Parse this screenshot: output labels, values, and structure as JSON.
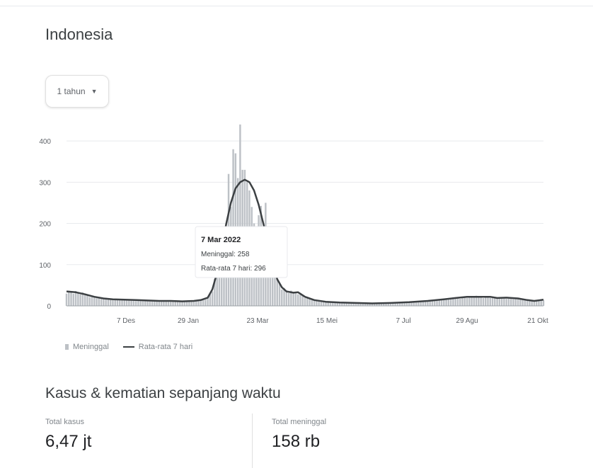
{
  "region": {
    "title": "Indonesia"
  },
  "range_select": {
    "value": "1 tahun",
    "icon": "dropdown-caret"
  },
  "chart_data": {
    "type": "bar",
    "series": [
      {
        "name": "Meninggal",
        "kind": "bar",
        "color": "#bdc1c6"
      },
      {
        "name": "Rata-rata 7 hari",
        "kind": "line",
        "color": "#3c4043"
      }
    ],
    "x_tick_labels": [
      "7 Des",
      "29 Jan",
      "23 Mar",
      "15 Mei",
      "7 Jul",
      "29 Agu",
      "21 Okt"
    ],
    "y_ticks": [
      0,
      100,
      200,
      300,
      400
    ],
    "ylim": [
      0,
      450
    ],
    "line_points": [
      [
        0,
        35
      ],
      [
        4,
        33
      ],
      [
        8,
        28
      ],
      [
        12,
        22
      ],
      [
        16,
        18
      ],
      [
        20,
        16
      ],
      [
        25,
        15
      ],
      [
        30,
        14
      ],
      [
        35,
        13
      ],
      [
        40,
        12
      ],
      [
        45,
        12
      ],
      [
        50,
        11
      ],
      [
        55,
        12
      ],
      [
        58,
        14
      ],
      [
        61,
        20
      ],
      [
        63,
        40
      ],
      [
        65,
        80
      ],
      [
        67,
        140
      ],
      [
        69,
        200
      ],
      [
        71,
        250
      ],
      [
        73,
        285
      ],
      [
        75,
        300
      ],
      [
        77,
        306
      ],
      [
        79,
        300
      ],
      [
        81,
        280
      ],
      [
        83,
        245
      ],
      [
        85,
        200
      ],
      [
        87,
        150
      ],
      [
        89,
        100
      ],
      [
        91,
        65
      ],
      [
        93,
        45
      ],
      [
        95,
        35
      ],
      [
        98,
        32
      ],
      [
        100,
        33
      ],
      [
        103,
        22
      ],
      [
        107,
        14
      ],
      [
        112,
        10
      ],
      [
        118,
        8
      ],
      [
        125,
        7
      ],
      [
        132,
        6
      ],
      [
        140,
        7
      ],
      [
        148,
        9
      ],
      [
        156,
        12
      ],
      [
        163,
        16
      ],
      [
        168,
        19
      ],
      [
        173,
        22
      ],
      [
        178,
        22
      ],
      [
        183,
        22
      ],
      [
        186,
        19
      ],
      [
        190,
        20
      ],
      [
        195,
        18
      ],
      [
        199,
        14
      ],
      [
        202,
        12
      ],
      [
        206,
        15
      ]
    ],
    "bar_spikes": [
      [
        68,
        180
      ],
      [
        70,
        320
      ],
      [
        71,
        240
      ],
      [
        72,
        380
      ],
      [
        73,
        370
      ],
      [
        74,
        310
      ],
      [
        75,
        440
      ],
      [
        76,
        330
      ],
      [
        77,
        330
      ],
      [
        78,
        300
      ],
      [
        79,
        280
      ],
      [
        80,
        240
      ],
      [
        81,
        200
      ],
      [
        82,
        160
      ],
      [
        83,
        220
      ],
      [
        85,
        190
      ],
      [
        86,
        250
      ],
      [
        87,
        150
      ],
      [
        91,
        75
      ]
    ],
    "tooltip": {
      "date": "7 Mar 2022",
      "deaths": "Meninggal: 258",
      "average": "Rata-rata 7 hari: 296"
    }
  },
  "summary": {
    "title": "Kasus & kematian sepanjang waktu",
    "total_cases_label": "Total kasus",
    "total_cases_value": "6,47 jt",
    "total_deaths_label": "Total meninggal",
    "total_deaths_value": "158 rb"
  }
}
